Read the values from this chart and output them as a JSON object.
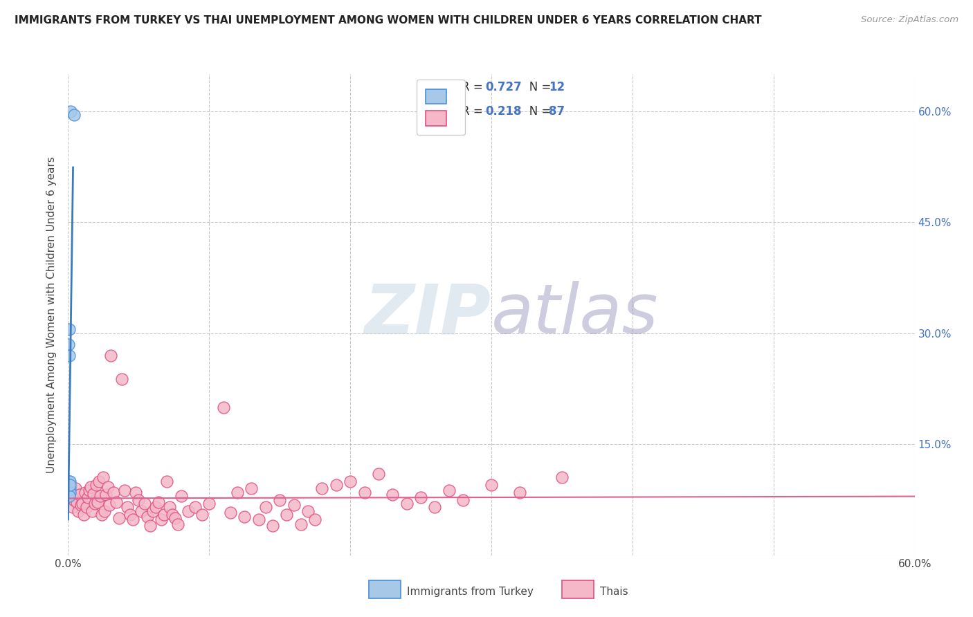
{
  "title": "IMMIGRANTS FROM TURKEY VS THAI UNEMPLOYMENT AMONG WOMEN WITH CHILDREN UNDER 6 YEARS CORRELATION CHART",
  "source": "Source: ZipAtlas.com",
  "ylabel": "Unemployment Among Women with Children Under 6 years",
  "xlim": [
    0.0,
    0.6
  ],
  "ylim": [
    0.0,
    0.65
  ],
  "xticks": [
    0.0,
    0.1,
    0.2,
    0.3,
    0.4,
    0.5,
    0.6
  ],
  "yticks": [
    0.0,
    0.15,
    0.3,
    0.45,
    0.6
  ],
  "xticklabels": [
    "0.0%",
    "",
    "",
    "",
    "",
    "",
    "60.0%"
  ],
  "yticklabels_right": [
    "",
    "15.0%",
    "30.0%",
    "45.0%",
    "60.0%"
  ],
  "blue_color": "#a8c8e8",
  "blue_edge_color": "#4a90d9",
  "pink_color": "#f4b8c8",
  "pink_edge_color": "#e05080",
  "blue_line_color": "#3a7abf",
  "pink_line_color": "#e06090",
  "watermark_zip": "#b8c8d8",
  "watermark_atlas": "#8090b0",
  "turkey_x": [
    0.002,
    0.004,
    0.0005,
    0.0007,
    0.0008,
    0.0006,
    0.001,
    0.0015,
    0.0012,
    0.0009,
    0.0011,
    0.0013
  ],
  "turkey_y": [
    0.6,
    0.595,
    0.285,
    0.305,
    0.27,
    0.1,
    0.095,
    0.09,
    0.085,
    0.08,
    0.1,
    0.095
  ],
  "thai_x": [
    0.002,
    0.003,
    0.004,
    0.005,
    0.006,
    0.007,
    0.008,
    0.009,
    0.01,
    0.011,
    0.012,
    0.013,
    0.014,
    0.015,
    0.016,
    0.017,
    0.018,
    0.019,
    0.02,
    0.021,
    0.022,
    0.023,
    0.024,
    0.025,
    0.026,
    0.027,
    0.028,
    0.029,
    0.03,
    0.032,
    0.034,
    0.036,
    0.038,
    0.04,
    0.042,
    0.044,
    0.046,
    0.048,
    0.05,
    0.052,
    0.054,
    0.056,
    0.058,
    0.06,
    0.062,
    0.064,
    0.066,
    0.068,
    0.07,
    0.072,
    0.074,
    0.076,
    0.078,
    0.08,
    0.085,
    0.09,
    0.095,
    0.1,
    0.11,
    0.115,
    0.12,
    0.125,
    0.13,
    0.135,
    0.14,
    0.145,
    0.15,
    0.155,
    0.16,
    0.165,
    0.17,
    0.175,
    0.18,
    0.19,
    0.2,
    0.21,
    0.22,
    0.23,
    0.24,
    0.25,
    0.26,
    0.27,
    0.28,
    0.3,
    0.32,
    0.35
  ],
  "thai_y": [
    0.08,
    0.065,
    0.075,
    0.09,
    0.072,
    0.06,
    0.082,
    0.068,
    0.07,
    0.055,
    0.085,
    0.065,
    0.078,
    0.088,
    0.092,
    0.06,
    0.083,
    0.07,
    0.095,
    0.072,
    0.1,
    0.08,
    0.055,
    0.105,
    0.06,
    0.082,
    0.092,
    0.068,
    0.27,
    0.085,
    0.072,
    0.05,
    0.238,
    0.088,
    0.065,
    0.055,
    0.048,
    0.085,
    0.075,
    0.06,
    0.07,
    0.052,
    0.04,
    0.06,
    0.065,
    0.072,
    0.048,
    0.055,
    0.1,
    0.065,
    0.055,
    0.05,
    0.042,
    0.08,
    0.06,
    0.065,
    0.055,
    0.07,
    0.2,
    0.058,
    0.085,
    0.052,
    0.09,
    0.048,
    0.065,
    0.04,
    0.075,
    0.055,
    0.068,
    0.042,
    0.06,
    0.048,
    0.09,
    0.095,
    0.1,
    0.085,
    0.11,
    0.082,
    0.07,
    0.078,
    0.065,
    0.088,
    0.075,
    0.095,
    0.085,
    0.105
  ]
}
